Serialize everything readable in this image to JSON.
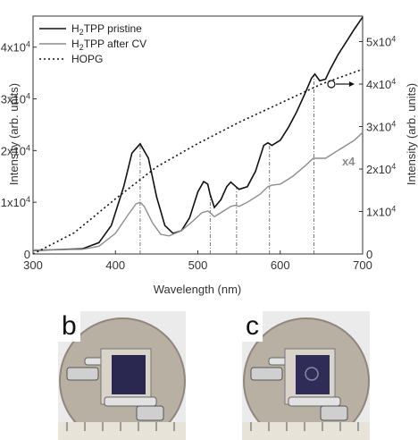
{
  "chart_data": {
    "type": "line",
    "xlabel": "Wavelength (nm)",
    "ylabel_left": "Intensity (arb. units)",
    "ylabel_right": "Intensity (arb. units)",
    "xlim": [
      300,
      700
    ],
    "ylim_left": [
      0,
      46000
    ],
    "ylim_right": [
      0,
      56000
    ],
    "x_ticks": [
      "300",
      "400",
      "500",
      "600",
      "700"
    ],
    "y_ticks_left": [
      {
        "value": 0,
        "base": "0",
        "exp": ""
      },
      {
        "value": 10000,
        "base": "1x10",
        "exp": "4"
      },
      {
        "value": 20000,
        "base": "2x10",
        "exp": "4"
      },
      {
        "value": 30000,
        "base": "3x10",
        "exp": "4"
      },
      {
        "value": 40000,
        "base": "4x10",
        "exp": "4"
      }
    ],
    "y_ticks_right": [
      {
        "value": 0,
        "base": "0",
        "exp": ""
      },
      {
        "value": 10000,
        "base": "1x10",
        "exp": "4"
      },
      {
        "value": 20000,
        "base": "2x10",
        "exp": "4"
      },
      {
        "value": 30000,
        "base": "3x10",
        "exp": "4"
      },
      {
        "value": 40000,
        "base": "4x10",
        "exp": "4"
      },
      {
        "value": 50000,
        "base": "5x10",
        "exp": "4"
      }
    ],
    "series": [
      {
        "name_main": "H",
        "name_sub": "2",
        "name_rest": "TPP pristine",
        "axis": "left",
        "color": "#111111",
        "dash": "none",
        "x": [
          300,
          360,
          380,
          395,
          410,
          420,
          430,
          440,
          450,
          460,
          470,
          480,
          490,
          500,
          507,
          512,
          515,
          520,
          528,
          535,
          540,
          545,
          550,
          560,
          570,
          580,
          585,
          590,
          600,
          610,
          620,
          630,
          638,
          642,
          648,
          655,
          660,
          670,
          680,
          690,
          700
        ],
        "y": [
          700,
          1000,
          2200,
          5500,
          13000,
          19500,
          21300,
          18500,
          11000,
          5500,
          4000,
          4500,
          7000,
          12000,
          14000,
          13500,
          11500,
          9000,
          10500,
          13000,
          13900,
          13200,
          12500,
          13000,
          16000,
          21000,
          21500,
          21000,
          22000,
          24500,
          27500,
          31000,
          34000,
          34800,
          33500,
          33800,
          35500,
          38500,
          41000,
          43500,
          45800
        ]
      },
      {
        "name_main": "H",
        "name_sub": "2",
        "name_rest": "TPP after CV",
        "axis": "left",
        "color": "#8c8c8c",
        "dash": "none",
        "x": [
          300,
          360,
          380,
          400,
          415,
          425,
          430,
          435,
          445,
          455,
          465,
          480,
          495,
          505,
          512,
          515,
          520,
          530,
          540,
          545,
          550,
          560,
          575,
          585,
          590,
          600,
          615,
          630,
          640,
          645,
          655,
          670,
          690,
          700
        ],
        "y": [
          800,
          900,
          1500,
          4000,
          7500,
          9700,
          10000,
          9200,
          6000,
          3800,
          3500,
          4500,
          6500,
          8000,
          8300,
          8000,
          7200,
          8200,
          9200,
          9400,
          9200,
          10000,
          11500,
          13000,
          13300,
          13500,
          15000,
          17000,
          18500,
          18500,
          18500,
          20000,
          22000,
          23500
        ]
      },
      {
        "name_main": "HOPG",
        "name_sub": "",
        "name_rest": "",
        "axis": "right",
        "color": "#111111",
        "dash": "2 3",
        "x": [
          300,
          350,
          400,
          450,
          500,
          550,
          600,
          650,
          700
        ],
        "y": [
          0,
          5000,
          13000,
          20500,
          26000,
          31000,
          35500,
          40000,
          43500
        ]
      }
    ],
    "legend_position": "top-left",
    "vlines_x": [
      430,
      515,
      547,
      587,
      641
    ],
    "annotations": [
      {
        "text": "x4",
        "x": 675,
        "y": 18000,
        "color": "#8c8c8c"
      }
    ],
    "marker_right_axis": {
      "x": 662,
      "y": 40000
    }
  },
  "photos": {
    "panel_b_label": "b",
    "panel_c_label": "c"
  }
}
